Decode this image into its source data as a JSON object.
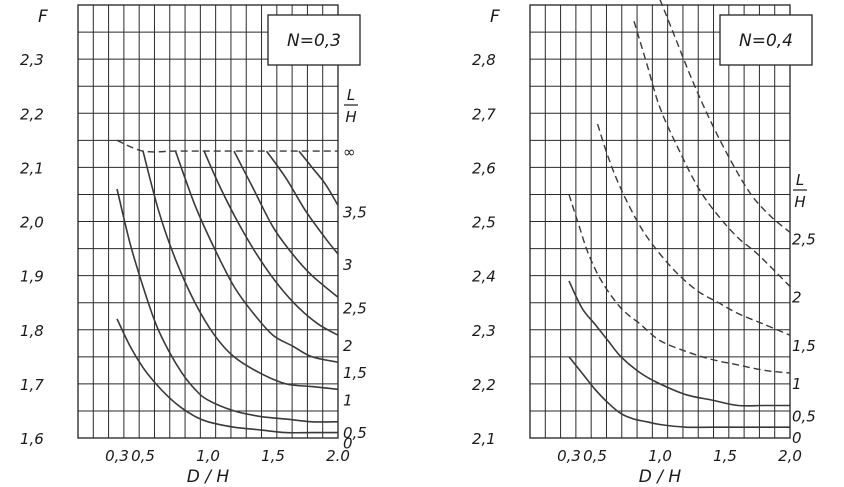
{
  "chart_data": [
    {
      "type": "line",
      "title": "N=0,3",
      "xlabel": "D / H",
      "ylabel": "F",
      "xlim": [
        0.0,
        2.0
      ],
      "ylim": [
        1.6,
        2.4
      ],
      "xticks": [
        {
          "value": 0.3,
          "label": "0,3"
        },
        {
          "value": 0.5,
          "label": "0,5"
        },
        {
          "value": 1.0,
          "label": "1,0"
        },
        {
          "value": 1.5,
          "label": "1,5"
        },
        {
          "value": 2.0,
          "label": "2.0"
        }
      ],
      "yticks": [
        {
          "value": 1.6,
          "label": "1,6"
        },
        {
          "value": 1.7,
          "label": "1,7"
        },
        {
          "value": 1.8,
          "label": "1,8"
        },
        {
          "value": 1.9,
          "label": "1,9"
        },
        {
          "value": 2.0,
          "label": "2,0"
        },
        {
          "value": 2.1,
          "label": "2,1"
        },
        {
          "value": 2.2,
          "label": "2,2"
        },
        {
          "value": 2.3,
          "label": "2,3"
        }
      ],
      "curve_param": {
        "num": "L",
        "den": "H"
      },
      "grid": true,
      "series": [
        {
          "name": "∞",
          "style": "dashed",
          "x": [
            0.3,
            0.5,
            0.75,
            1.0,
            1.25,
            1.5,
            1.75,
            2.0
          ],
          "y": [
            2.15,
            2.13,
            2.13,
            2.13,
            2.13,
            2.13,
            2.13,
            2.13
          ]
        },
        {
          "name": "3,5",
          "style": "solid",
          "x": [
            1.7,
            1.8,
            1.9,
            2.0
          ],
          "y": [
            2.13,
            2.1,
            2.07,
            2.03
          ]
        },
        {
          "name": "3",
          "style": "solid",
          "x": [
            1.45,
            1.6,
            1.75,
            1.9,
            2.0
          ],
          "y": [
            2.13,
            2.08,
            2.02,
            1.97,
            1.94
          ]
        },
        {
          "name": "2,5",
          "style": "solid",
          "x": [
            1.2,
            1.35,
            1.5,
            1.65,
            1.8,
            2.0
          ],
          "y": [
            2.13,
            2.06,
            1.99,
            1.94,
            1.9,
            1.86
          ]
        },
        {
          "name": "2",
          "style": "solid",
          "x": [
            0.97,
            1.1,
            1.25,
            1.4,
            1.55,
            1.7,
            1.85,
            2.0
          ],
          "y": [
            2.13,
            2.06,
            1.99,
            1.93,
            1.88,
            1.84,
            1.81,
            1.79
          ]
        },
        {
          "name": "1,5",
          "style": "solid",
          "x": [
            0.75,
            0.9,
            1.05,
            1.2,
            1.35,
            1.5,
            1.65,
            1.8,
            2.0
          ],
          "y": [
            2.13,
            2.03,
            1.95,
            1.88,
            1.83,
            1.79,
            1.77,
            1.75,
            1.74
          ]
        },
        {
          "name": "1",
          "style": "solid",
          "x": [
            0.5,
            0.62,
            0.75,
            0.9,
            1.05,
            1.2,
            1.4,
            1.6,
            1.8,
            2.0
          ],
          "y": [
            2.13,
            2.02,
            1.93,
            1.85,
            1.79,
            1.75,
            1.72,
            1.7,
            1.695,
            1.69
          ]
        },
        {
          "name": "0,5",
          "style": "solid",
          "x": [
            0.3,
            0.4,
            0.5,
            0.6,
            0.7,
            0.8,
            0.9,
            1.0,
            1.2,
            1.4,
            1.6,
            1.8,
            2.0
          ],
          "y": [
            2.06,
            1.96,
            1.88,
            1.81,
            1.76,
            1.72,
            1.69,
            1.67,
            1.65,
            1.64,
            1.635,
            1.63,
            1.63
          ]
        },
        {
          "name": "0",
          "style": "solid",
          "x": [
            0.3,
            0.4,
            0.5,
            0.6,
            0.7,
            0.8,
            0.9,
            1.0,
            1.2,
            1.4,
            1.6,
            1.8,
            2.0
          ],
          "y": [
            1.82,
            1.77,
            1.73,
            1.7,
            1.675,
            1.655,
            1.64,
            1.63,
            1.62,
            1.615,
            1.61,
            1.61,
            1.61
          ]
        }
      ]
    },
    {
      "type": "line",
      "title": "N=0,4",
      "xlabel": "D / H",
      "ylabel": "F",
      "xlim": [
        0.0,
        2.0
      ],
      "ylim": [
        2.1,
        2.9
      ],
      "xticks": [
        {
          "value": 0.3,
          "label": "0,3"
        },
        {
          "value": 0.5,
          "label": "0,5"
        },
        {
          "value": 1.0,
          "label": "1,0"
        },
        {
          "value": 1.5,
          "label": "1,5"
        },
        {
          "value": 2.0,
          "label": "2,0"
        }
      ],
      "yticks": [
        {
          "value": 2.1,
          "label": "2,1"
        },
        {
          "value": 2.2,
          "label": "2,2"
        },
        {
          "value": 2.3,
          "label": "2,3"
        },
        {
          "value": 2.4,
          "label": "2,4"
        },
        {
          "value": 2.5,
          "label": "2,5"
        },
        {
          "value": 2.6,
          "label": "2,6"
        },
        {
          "value": 2.7,
          "label": "2,7"
        },
        {
          "value": 2.8,
          "label": "2,8"
        }
      ],
      "curve_param": {
        "num": "L",
        "den": "H"
      },
      "grid": true,
      "series": [
        {
          "name": "2,5",
          "style": "dashed",
          "x": [
            1.0,
            1.1,
            1.25,
            1.4,
            1.55,
            1.7,
            1.85,
            2.0
          ],
          "y": [
            2.91,
            2.85,
            2.76,
            2.68,
            2.61,
            2.55,
            2.51,
            2.48
          ]
        },
        {
          "name": "2",
          "style": "dashed",
          "x": [
            0.8,
            0.9,
            1.0,
            1.15,
            1.3,
            1.45,
            1.6,
            1.75,
            2.0
          ],
          "y": [
            2.87,
            2.79,
            2.71,
            2.63,
            2.56,
            2.51,
            2.47,
            2.44,
            2.38
          ]
        },
        {
          "name": "1,5",
          "style": "dashed",
          "x": [
            0.52,
            0.6,
            0.7,
            0.85,
            1.0,
            1.15,
            1.3,
            1.45,
            1.6,
            1.8,
            2.0
          ],
          "y": [
            2.68,
            2.62,
            2.56,
            2.49,
            2.44,
            2.4,
            2.37,
            2.35,
            2.33,
            2.31,
            2.29
          ]
        },
        {
          "name": "1",
          "style": "dashed",
          "x": [
            0.3,
            0.38,
            0.45,
            0.55,
            0.7,
            0.85,
            1.0,
            1.2,
            1.4,
            1.6,
            1.8,
            2.0
          ],
          "y": [
            2.55,
            2.49,
            2.44,
            2.39,
            2.34,
            2.31,
            2.28,
            2.26,
            2.245,
            2.235,
            2.225,
            2.22
          ]
        },
        {
          "name": "0,5",
          "style": "solid",
          "x": [
            0.3,
            0.4,
            0.5,
            0.6,
            0.7,
            0.85,
            1.0,
            1.2,
            1.4,
            1.6,
            1.8,
            2.0
          ],
          "y": [
            2.39,
            2.34,
            2.31,
            2.28,
            2.25,
            2.22,
            2.2,
            2.18,
            2.17,
            2.16,
            2.16,
            2.16
          ]
        },
        {
          "name": "0",
          "style": "solid",
          "x": [
            0.3,
            0.4,
            0.5,
            0.6,
            0.7,
            0.8,
            0.9,
            1.0,
            1.2,
            1.4,
            1.6,
            1.8,
            2.0
          ],
          "y": [
            2.25,
            2.22,
            2.19,
            2.165,
            2.145,
            2.135,
            2.13,
            2.125,
            2.12,
            2.12,
            2.12,
            2.12,
            2.12
          ]
        }
      ]
    }
  ]
}
